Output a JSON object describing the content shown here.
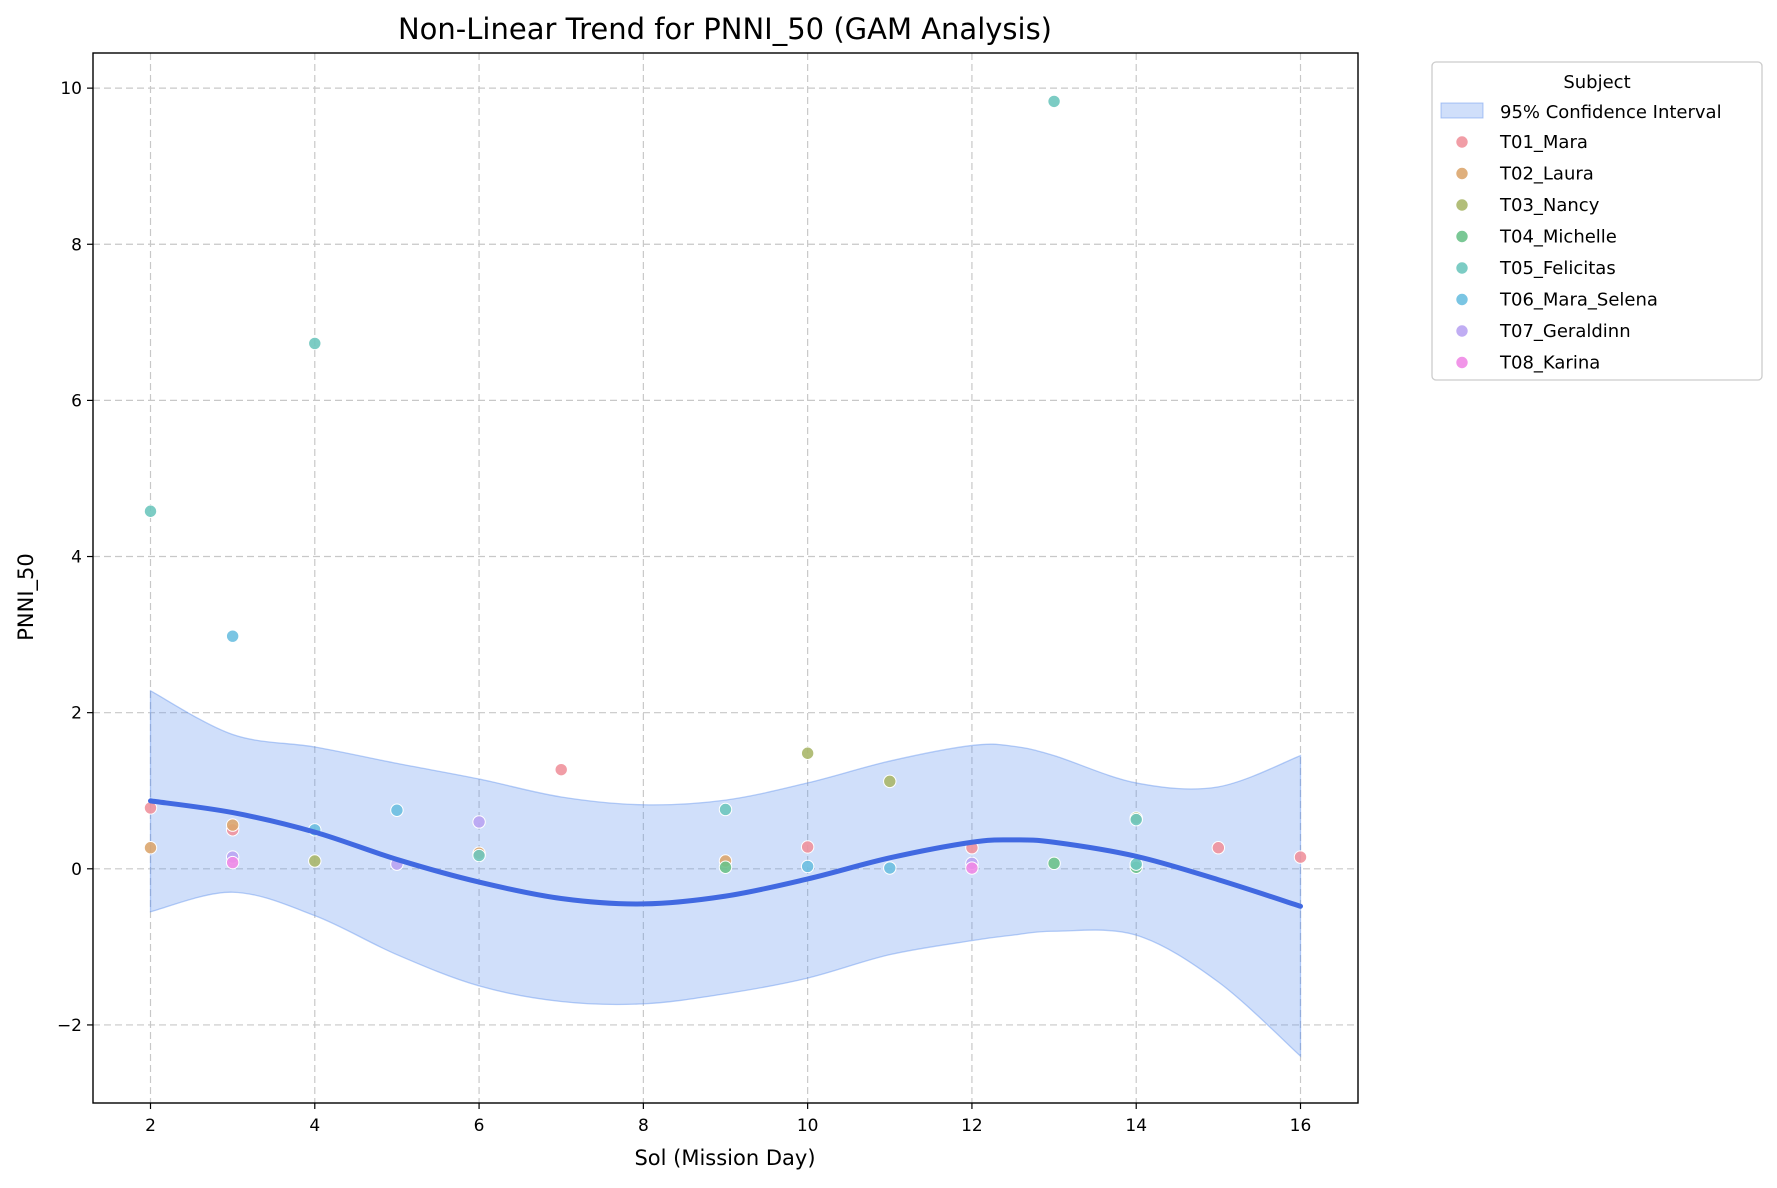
{
  "chart_data": {
    "type": "scatter",
    "title": "Non-Linear Trend for PNNI_50 (GAM Analysis)",
    "xlabel": "Sol (Mission Day)",
    "ylabel": "PNNI_50",
    "xlim": [
      1.3,
      16.7
    ],
    "ylim": [
      -3.0,
      10.45
    ],
    "xticks": [
      2,
      4,
      6,
      8,
      10,
      12,
      14,
      16
    ],
    "yticks": [
      -2,
      0,
      2,
      4,
      6,
      8,
      10
    ],
    "xtick_labels": [
      "2",
      "4",
      "6",
      "8",
      "10",
      "12",
      "14",
      "16"
    ],
    "ytick_labels": [
      "−2",
      "0",
      "2",
      "4",
      "6",
      "8",
      "10"
    ],
    "grid": true,
    "legend": {
      "title": "Subject",
      "placement": "outside-upper-right",
      "ci_label": "95% Confidence Interval"
    },
    "trend_color": "#4169e1",
    "ci_color": "#6495ed",
    "trend": {
      "name": "GAM fit",
      "x": [
        2,
        3,
        4,
        5,
        6,
        7,
        8,
        9,
        10,
        11,
        12,
        12.5,
        13,
        14,
        15,
        16
      ],
      "y": [
        0.87,
        0.72,
        0.47,
        0.12,
        -0.17,
        -0.38,
        -0.45,
        -0.35,
        -0.13,
        0.14,
        0.34,
        0.37,
        0.34,
        0.16,
        -0.14,
        -0.48
      ]
    },
    "ci": {
      "x": [
        2,
        3,
        4,
        5,
        6,
        7,
        8,
        9,
        10,
        11,
        12,
        12.5,
        13,
        14,
        15,
        16
      ],
      "lower": [
        -0.55,
        -0.3,
        -0.6,
        -1.1,
        -1.5,
        -1.7,
        -1.73,
        -1.6,
        -1.4,
        -1.1,
        -0.92,
        -0.85,
        -0.8,
        -0.85,
        -1.45,
        -2.4
      ],
      "upper": [
        2.28,
        1.72,
        1.56,
        1.35,
        1.15,
        0.92,
        0.82,
        0.88,
        1.1,
        1.38,
        1.58,
        1.57,
        1.45,
        1.1,
        1.05,
        1.45
      ]
    },
    "series": [
      {
        "name": "T01_Mara",
        "color": "#f0929c",
        "points": [
          [
            2,
            0.78
          ],
          [
            3,
            0.5
          ],
          [
            6,
            0.18
          ],
          [
            7,
            1.27
          ],
          [
            10,
            0.28
          ],
          [
            12,
            0.27
          ],
          [
            15,
            0.27
          ],
          [
            16,
            0.15
          ]
        ]
      },
      {
        "name": "T02_Laura",
        "color": "#dca66e",
        "points": [
          [
            2,
            0.27
          ],
          [
            3,
            0.56
          ],
          [
            6,
            0.2
          ],
          [
            9,
            0.1
          ]
        ]
      },
      {
        "name": "T03_Nancy",
        "color": "#aab76a",
        "points": [
          [
            4,
            0.1
          ],
          [
            10,
            1.48
          ],
          [
            11,
            1.12
          ],
          [
            14,
            0.65
          ]
        ]
      },
      {
        "name": "T04_Michelle",
        "color": "#6cc28a",
        "points": [
          [
            9,
            0.02
          ],
          [
            13,
            0.07
          ],
          [
            14,
            0.02
          ]
        ]
      },
      {
        "name": "T05_Felicitas",
        "color": "#6ec7be",
        "points": [
          [
            2,
            4.58
          ],
          [
            4,
            6.73
          ],
          [
            6,
            0.17
          ],
          [
            9,
            0.76
          ],
          [
            13,
            9.83
          ],
          [
            14,
            0.63
          ],
          [
            14,
            0.06
          ]
        ]
      },
      {
        "name": "T06_Mara_Selena",
        "color": "#6cbfe0",
        "points": [
          [
            3,
            2.98
          ],
          [
            4,
            0.5
          ],
          [
            5,
            0.75
          ],
          [
            10,
            0.03
          ],
          [
            11,
            0.01
          ]
        ]
      },
      {
        "name": "T07_Geraldinn",
        "color": "#b9a4f2",
        "points": [
          [
            3,
            0.15
          ],
          [
            5,
            0.06
          ],
          [
            6,
            0.6
          ],
          [
            12,
            0.07
          ]
        ]
      },
      {
        "name": "T08_Karina",
        "color": "#f08ae6",
        "points": [
          [
            3,
            0.08
          ],
          [
            12,
            0.01
          ]
        ]
      }
    ]
  }
}
